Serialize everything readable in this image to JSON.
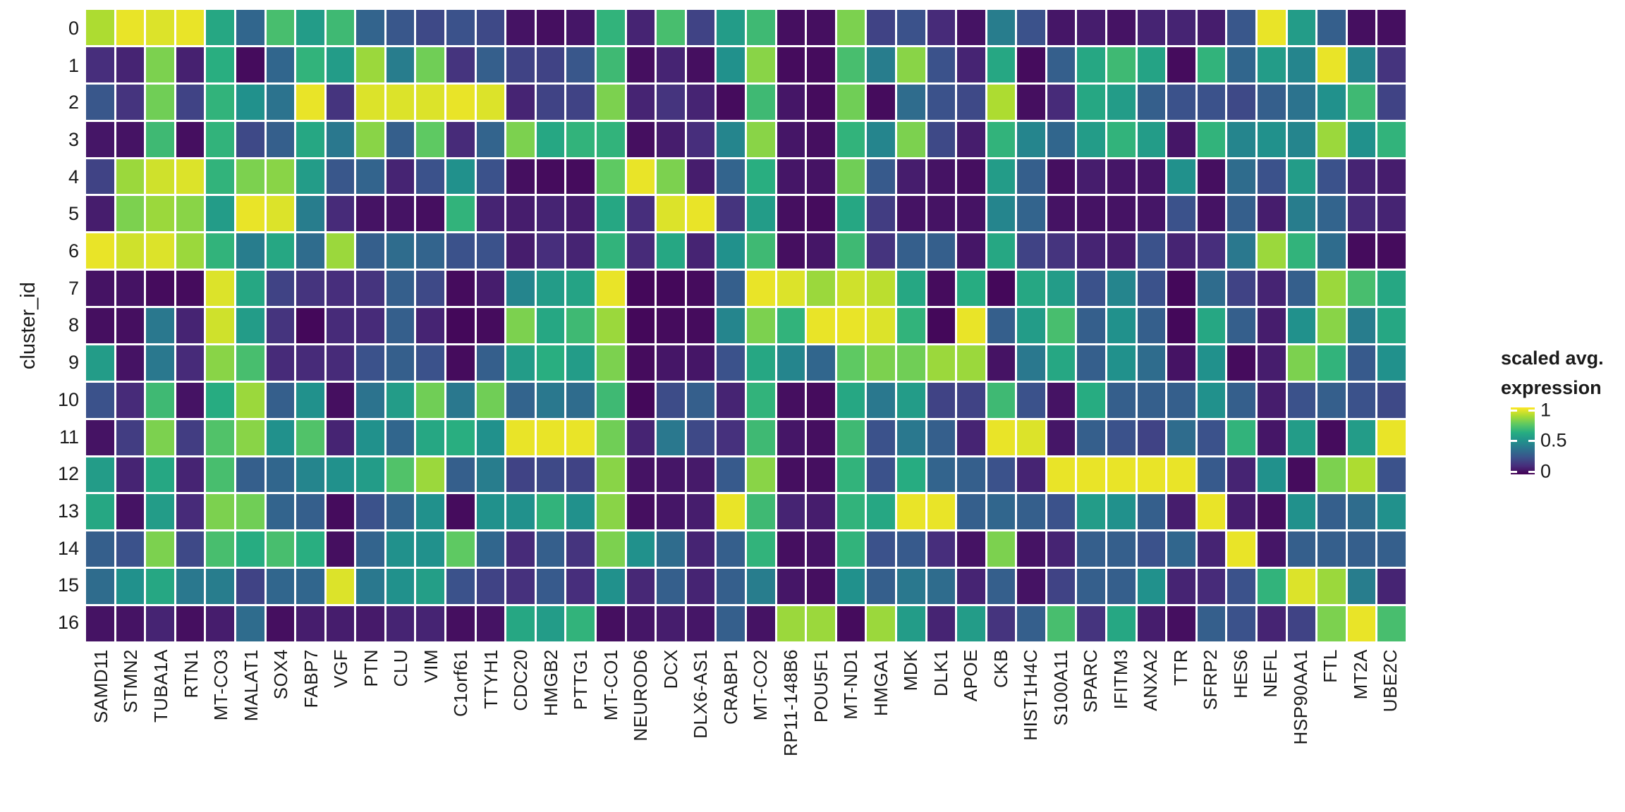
{
  "axes": {
    "y_title": "cluster_id",
    "row_labels": [
      "0",
      "1",
      "2",
      "3",
      "4",
      "5",
      "6",
      "7",
      "8",
      "9",
      "10",
      "11",
      "12",
      "13",
      "14",
      "15",
      "16"
    ]
  },
  "legend": {
    "title_line1": "scaled avg.",
    "title_line2": "expression",
    "tick_labels": [
      "1",
      "0.5",
      "0"
    ],
    "tick_values": [
      1,
      0.5,
      0
    ]
  },
  "colors": {
    "background": "#ffffff",
    "grid_gap": "#ffffff",
    "text": "#1a1a1a",
    "viridis_stops": [
      [
        0.0,
        "#440154"
      ],
      [
        0.125,
        "#472d7b"
      ],
      [
        0.25,
        "#3b528b"
      ],
      [
        0.375,
        "#2c728e"
      ],
      [
        0.5,
        "#21918c"
      ],
      [
        0.625,
        "#27ad81"
      ],
      [
        0.75,
        "#5ec962"
      ],
      [
        0.875,
        "#aadc32"
      ],
      [
        1.0,
        "#fde725"
      ]
    ]
  },
  "chart_data": {
    "type": "heatmap",
    "title": "",
    "xlabel": "",
    "ylabel": "cluster_id",
    "colorbar_label": "scaled avg. expression",
    "color_range": [
      0,
      1
    ],
    "grid": false,
    "legend_position": "right",
    "x_labels": [
      "SAMD11",
      "STMN2",
      "TUBA1A",
      "RTN1",
      "MT-CO3",
      "MALAT1",
      "SOX4",
      "FABP7",
      "VGF",
      "PTN",
      "CLU",
      "VIM",
      "C1orf61",
      "TTYH1",
      "CDC20",
      "HMGB2",
      "PTTG1",
      "MT-CO1",
      "NEUROD6",
      "DCX",
      "DLX6-AS1",
      "CRABP1",
      "MT-CO2",
      "RP11-148B6",
      "POU5F1",
      "MT-ND1",
      "HMGA1",
      "MDK",
      "DLK1",
      "APOE",
      "CKB",
      "HIST1H4C",
      "S100A11",
      "SPARC",
      "IFITM3",
      "ANXA2",
      "TTR",
      "SFRP2",
      "HES6",
      "NEFL",
      "HSP90AA1",
      "FTL",
      "MT2A",
      "UBE2C"
    ],
    "y_labels": [
      "0",
      "1",
      "2",
      "3",
      "4",
      "5",
      "6",
      "7",
      "8",
      "9",
      "10",
      "11",
      "12",
      "13",
      "14",
      "15",
      "16"
    ],
    "values": [
      [
        0.88,
        0.97,
        0.95,
        0.97,
        0.6,
        0.33,
        0.7,
        0.55,
        0.68,
        0.32,
        0.27,
        0.22,
        0.25,
        0.22,
        0.05,
        0.04,
        0.06,
        0.65,
        0.1,
        0.7,
        0.2,
        0.55,
        0.68,
        0.04,
        0.04,
        0.8,
        0.2,
        0.25,
        0.12,
        0.05,
        0.42,
        0.25,
        0.06,
        0.08,
        0.05,
        0.1,
        0.1,
        0.08,
        0.27,
        0.97,
        0.55,
        0.3,
        0.04,
        0.04
      ],
      [
        0.13,
        0.1,
        0.8,
        0.09,
        0.63,
        0.03,
        0.33,
        0.65,
        0.55,
        0.85,
        0.42,
        0.78,
        0.15,
        0.3,
        0.2,
        0.2,
        0.27,
        0.68,
        0.04,
        0.1,
        0.04,
        0.5,
        0.82,
        0.03,
        0.03,
        0.7,
        0.42,
        0.82,
        0.25,
        0.1,
        0.6,
        0.03,
        0.3,
        0.6,
        0.68,
        0.58,
        0.03,
        0.65,
        0.33,
        0.55,
        0.45,
        0.97,
        0.45,
        0.15
      ],
      [
        0.27,
        0.15,
        0.78,
        0.2,
        0.65,
        0.5,
        0.38,
        0.97,
        0.15,
        0.95,
        0.95,
        0.95,
        0.97,
        0.95,
        0.1,
        0.2,
        0.2,
        0.8,
        0.1,
        0.15,
        0.1,
        0.03,
        0.68,
        0.06,
        0.03,
        0.78,
        0.03,
        0.35,
        0.25,
        0.22,
        0.88,
        0.04,
        0.12,
        0.6,
        0.55,
        0.3,
        0.25,
        0.25,
        0.22,
        0.3,
        0.38,
        0.5,
        0.68,
        0.2
      ],
      [
        0.06,
        0.05,
        0.68,
        0.04,
        0.65,
        0.22,
        0.3,
        0.6,
        0.4,
        0.82,
        0.3,
        0.75,
        0.12,
        0.32,
        0.8,
        0.6,
        0.65,
        0.65,
        0.04,
        0.08,
        0.13,
        0.45,
        0.82,
        0.06,
        0.04,
        0.65,
        0.45,
        0.8,
        0.22,
        0.08,
        0.65,
        0.45,
        0.33,
        0.55,
        0.65,
        0.55,
        0.06,
        0.65,
        0.45,
        0.5,
        0.45,
        0.85,
        0.5,
        0.65
      ],
      [
        0.2,
        0.85,
        0.93,
        0.95,
        0.65,
        0.8,
        0.82,
        0.55,
        0.27,
        0.32,
        0.1,
        0.25,
        0.5,
        0.25,
        0.04,
        0.03,
        0.03,
        0.75,
        0.97,
        0.8,
        0.08,
        0.32,
        0.63,
        0.06,
        0.05,
        0.78,
        0.28,
        0.08,
        0.05,
        0.04,
        0.55,
        0.3,
        0.04,
        0.08,
        0.06,
        0.06,
        0.5,
        0.04,
        0.35,
        0.25,
        0.55,
        0.25,
        0.1,
        0.08
      ],
      [
        0.08,
        0.8,
        0.85,
        0.82,
        0.55,
        0.97,
        0.95,
        0.42,
        0.12,
        0.05,
        0.05,
        0.04,
        0.65,
        0.1,
        0.08,
        0.1,
        0.08,
        0.6,
        0.13,
        0.95,
        0.97,
        0.15,
        0.55,
        0.04,
        0.03,
        0.6,
        0.18,
        0.05,
        0.05,
        0.05,
        0.45,
        0.32,
        0.05,
        0.05,
        0.05,
        0.06,
        0.25,
        0.05,
        0.3,
        0.08,
        0.42,
        0.32,
        0.12,
        0.1
      ],
      [
        0.97,
        0.93,
        0.95,
        0.85,
        0.65,
        0.42,
        0.6,
        0.35,
        0.85,
        0.3,
        0.35,
        0.32,
        0.25,
        0.25,
        0.08,
        0.13,
        0.1,
        0.65,
        0.12,
        0.6,
        0.1,
        0.5,
        0.68,
        0.04,
        0.06,
        0.68,
        0.15,
        0.3,
        0.3,
        0.06,
        0.6,
        0.2,
        0.15,
        0.1,
        0.08,
        0.25,
        0.1,
        0.13,
        0.4,
        0.85,
        0.65,
        0.35,
        0.03,
        0.03
      ],
      [
        0.05,
        0.05,
        0.03,
        0.03,
        0.95,
        0.6,
        0.2,
        0.15,
        0.13,
        0.15,
        0.3,
        0.22,
        0.03,
        0.08,
        0.45,
        0.55,
        0.58,
        0.97,
        0.02,
        0.02,
        0.03,
        0.3,
        0.97,
        0.95,
        0.85,
        0.93,
        0.9,
        0.6,
        0.03,
        0.62,
        0.02,
        0.6,
        0.55,
        0.25,
        0.45,
        0.25,
        0.02,
        0.35,
        0.2,
        0.1,
        0.3,
        0.85,
        0.7,
        0.6
      ],
      [
        0.04,
        0.04,
        0.4,
        0.1,
        0.93,
        0.55,
        0.15,
        0.02,
        0.12,
        0.12,
        0.3,
        0.1,
        0.02,
        0.03,
        0.8,
        0.6,
        0.68,
        0.85,
        0.02,
        0.03,
        0.03,
        0.45,
        0.8,
        0.65,
        0.97,
        0.97,
        0.95,
        0.65,
        0.02,
        0.97,
        0.3,
        0.55,
        0.7,
        0.3,
        0.5,
        0.3,
        0.02,
        0.6,
        0.3,
        0.08,
        0.5,
        0.82,
        0.42,
        0.6
      ],
      [
        0.55,
        0.05,
        0.4,
        0.12,
        0.82,
        0.7,
        0.12,
        0.12,
        0.12,
        0.25,
        0.3,
        0.25,
        0.03,
        0.3,
        0.55,
        0.63,
        0.55,
        0.8,
        0.03,
        0.06,
        0.06,
        0.25,
        0.6,
        0.45,
        0.33,
        0.75,
        0.8,
        0.78,
        0.85,
        0.85,
        0.05,
        0.4,
        0.6,
        0.3,
        0.5,
        0.35,
        0.05,
        0.5,
        0.03,
        0.08,
        0.8,
        0.65,
        0.28,
        0.5
      ],
      [
        0.25,
        0.12,
        0.68,
        0.05,
        0.62,
        0.85,
        0.3,
        0.5,
        0.04,
        0.38,
        0.55,
        0.78,
        0.4,
        0.78,
        0.32,
        0.4,
        0.35,
        0.68,
        0.02,
        0.23,
        0.3,
        0.1,
        0.65,
        0.04,
        0.03,
        0.6,
        0.4,
        0.55,
        0.2,
        0.2,
        0.68,
        0.25,
        0.05,
        0.62,
        0.3,
        0.3,
        0.3,
        0.5,
        0.3,
        0.08,
        0.25,
        0.3,
        0.25,
        0.22
      ],
      [
        0.05,
        0.18,
        0.8,
        0.18,
        0.72,
        0.82,
        0.5,
        0.72,
        0.1,
        0.5,
        0.33,
        0.6,
        0.63,
        0.5,
        0.97,
        0.97,
        0.97,
        0.78,
        0.1,
        0.4,
        0.22,
        0.14,
        0.68,
        0.06,
        0.04,
        0.68,
        0.25,
        0.4,
        0.3,
        0.1,
        0.97,
        0.95,
        0.06,
        0.3,
        0.25,
        0.2,
        0.35,
        0.25,
        0.65,
        0.06,
        0.55,
        0.03,
        0.55,
        0.97
      ],
      [
        0.55,
        0.1,
        0.6,
        0.1,
        0.7,
        0.3,
        0.33,
        0.45,
        0.5,
        0.55,
        0.72,
        0.85,
        0.3,
        0.42,
        0.2,
        0.22,
        0.2,
        0.82,
        0.05,
        0.06,
        0.07,
        0.28,
        0.82,
        0.04,
        0.04,
        0.65,
        0.25,
        0.62,
        0.32,
        0.3,
        0.25,
        0.1,
        0.97,
        0.97,
        0.97,
        0.97,
        0.97,
        0.28,
        0.1,
        0.5,
        0.03,
        0.8,
        0.88,
        0.25
      ],
      [
        0.6,
        0.05,
        0.55,
        0.12,
        0.8,
        0.78,
        0.32,
        0.3,
        0.03,
        0.25,
        0.32,
        0.5,
        0.03,
        0.5,
        0.5,
        0.65,
        0.5,
        0.82,
        0.04,
        0.06,
        0.08,
        0.97,
        0.68,
        0.1,
        0.08,
        0.65,
        0.6,
        0.97,
        0.97,
        0.3,
        0.33,
        0.3,
        0.25,
        0.55,
        0.5,
        0.3,
        0.08,
        0.97,
        0.08,
        0.04,
        0.5,
        0.3,
        0.35,
        0.5
      ],
      [
        0.3,
        0.25,
        0.8,
        0.22,
        0.7,
        0.62,
        0.7,
        0.63,
        0.04,
        0.32,
        0.5,
        0.5,
        0.75,
        0.33,
        0.12,
        0.3,
        0.15,
        0.8,
        0.5,
        0.35,
        0.1,
        0.3,
        0.65,
        0.04,
        0.05,
        0.65,
        0.25,
        0.28,
        0.13,
        0.05,
        0.8,
        0.05,
        0.1,
        0.3,
        0.3,
        0.25,
        0.33,
        0.1,
        0.97,
        0.06,
        0.3,
        0.3,
        0.3,
        0.3
      ],
      [
        0.35,
        0.5,
        0.6,
        0.4,
        0.42,
        0.2,
        0.33,
        0.33,
        0.95,
        0.4,
        0.5,
        0.56,
        0.25,
        0.2,
        0.14,
        0.28,
        0.13,
        0.5,
        0.11,
        0.3,
        0.1,
        0.3,
        0.42,
        0.06,
        0.04,
        0.5,
        0.3,
        0.4,
        0.35,
        0.1,
        0.3,
        0.05,
        0.2,
        0.3,
        0.3,
        0.5,
        0.1,
        0.12,
        0.25,
        0.65,
        0.95,
        0.85,
        0.42,
        0.1
      ],
      [
        0.05,
        0.05,
        0.1,
        0.04,
        0.08,
        0.35,
        0.04,
        0.08,
        0.08,
        0.07,
        0.1,
        0.1,
        0.04,
        0.05,
        0.6,
        0.55,
        0.65,
        0.04,
        0.06,
        0.08,
        0.06,
        0.3,
        0.05,
        0.85,
        0.85,
        0.03,
        0.85,
        0.55,
        0.1,
        0.55,
        0.15,
        0.3,
        0.7,
        0.15,
        0.6,
        0.08,
        0.04,
        0.3,
        0.25,
        0.1,
        0.2,
        0.8,
        0.97,
        0.7
      ]
    ]
  }
}
